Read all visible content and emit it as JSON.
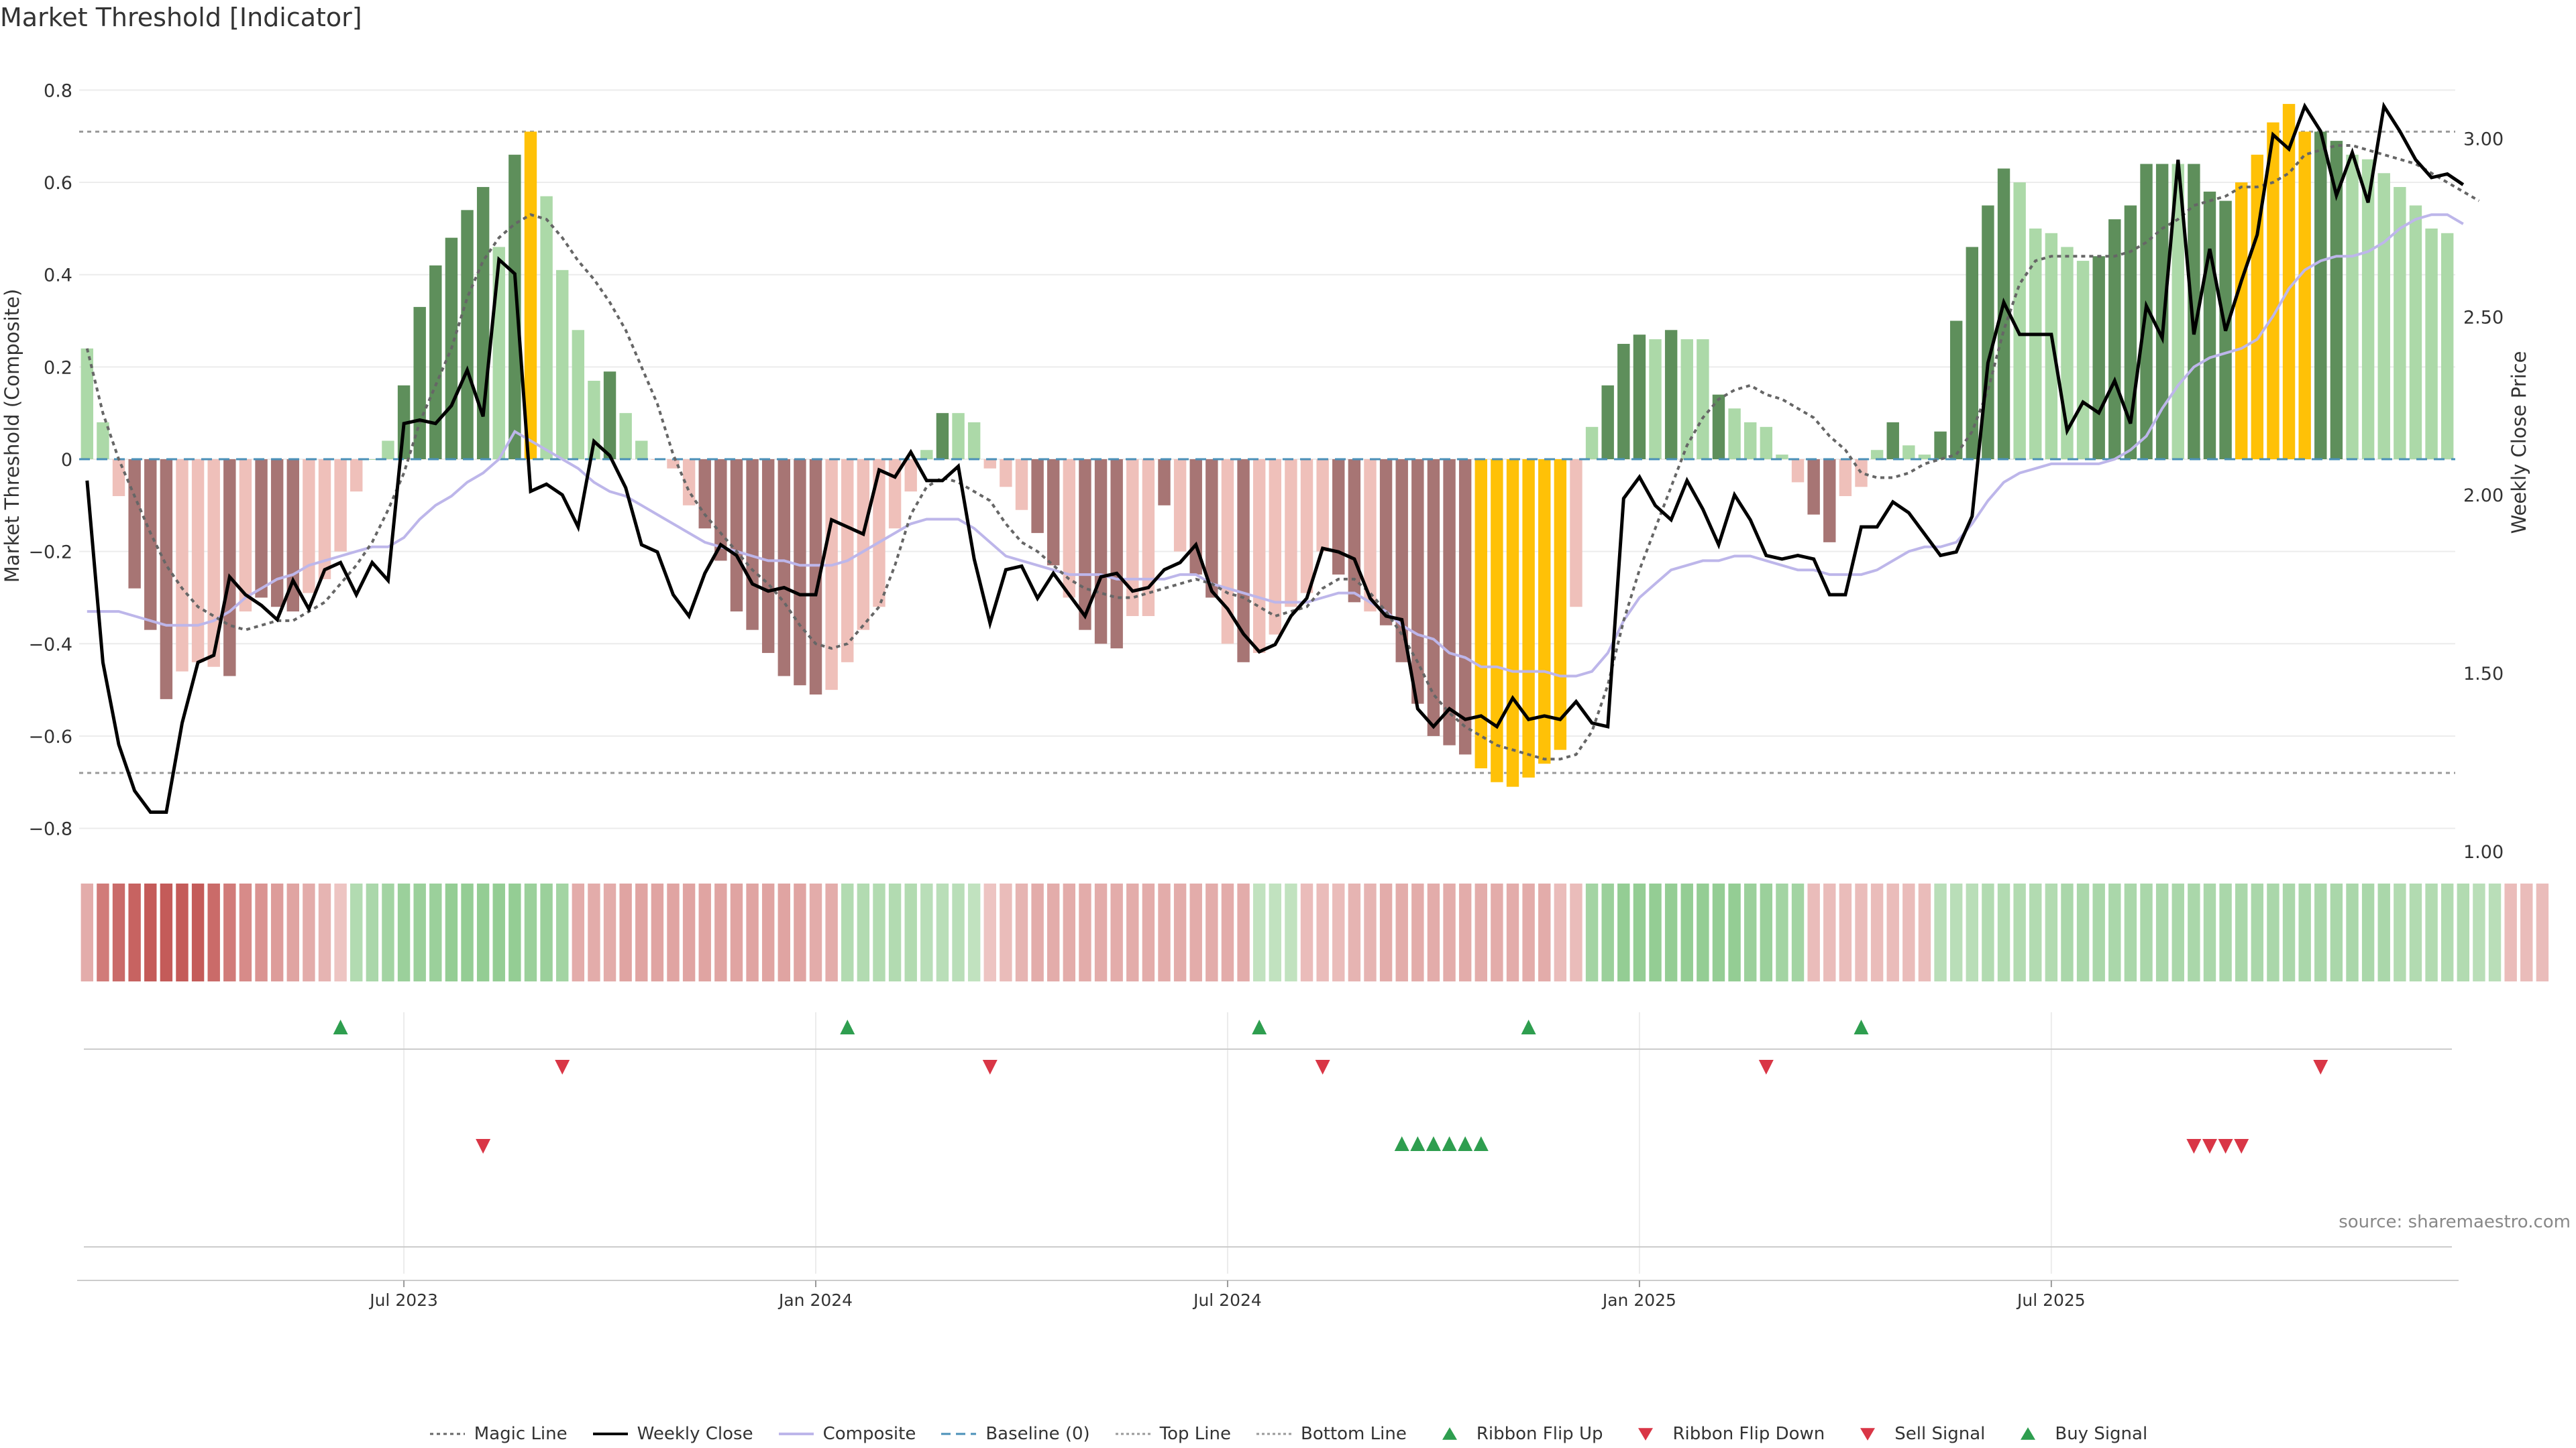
{
  "title": "Market Threshold [Indicator]",
  "source": "source: sharemaestro.com",
  "colors": {
    "strong_pos": "#5e8f5b",
    "weak_pos": "#acd9a8",
    "strong_neg": "#a77574",
    "weak_neg": "#efc0ba",
    "extreme": "#ffc107",
    "weekly": "#000000",
    "composite": "#bdb6ea",
    "magic": "#666666",
    "baseline": "#4a90b8",
    "threshold": "#999999",
    "signal_up": "#2e9e4f",
    "signal_down": "#d93646"
  },
  "legend": [
    {
      "label": "Magic Line",
      "icon": "dotted-line-icon"
    },
    {
      "label": "Weekly Close",
      "icon": "solid-line-icon"
    },
    {
      "label": "Composite",
      "icon": "lilac-line-icon"
    },
    {
      "label": "Baseline (0)",
      "icon": "dashed-line-icon"
    },
    {
      "label": "Top Line",
      "icon": "dotted-gray-line-icon"
    },
    {
      "label": "Bottom Line",
      "icon": "dotted-gray-line-icon"
    },
    {
      "label": "Ribbon Flip Up",
      "icon": "triangle-up-icon"
    },
    {
      "label": "Ribbon Flip Down",
      "icon": "triangle-down-icon"
    },
    {
      "label": "Sell Signal",
      "icon": "triangle-down-icon"
    },
    {
      "label": "Buy Signal",
      "icon": "triangle-up-icon"
    }
  ],
  "chart_data": {
    "type": "bar",
    "title": "Market Threshold [Indicator]",
    "ylabel": "Market Threshold (Composite)",
    "y2label": "Weekly Close Price",
    "ylim": [
      -0.85,
      0.85
    ],
    "y2lim": [
      1.0,
      3.2
    ],
    "yticks": [
      {
        "v": 0.8,
        "label": "0.8"
      },
      {
        "v": 0.6,
        "label": "0.6"
      },
      {
        "v": 0.4,
        "label": "0.4"
      },
      {
        "v": 0.2,
        "label": "0.2"
      },
      {
        "v": 0,
        "label": "0"
      },
      {
        "v": -0.2,
        "label": "−0.2"
      },
      {
        "v": -0.4,
        "label": "−0.4"
      },
      {
        "v": -0.6,
        "label": "−0.6"
      },
      {
        "v": -0.8,
        "label": "−0.8"
      }
    ],
    "y2ticks": [
      {
        "v": 3.0,
        "label": "3.00"
      },
      {
        "v": 2.5,
        "label": "2.50"
      },
      {
        "v": 2.0,
        "label": "2.00"
      },
      {
        "v": 1.5,
        "label": "1.50"
      },
      {
        "v": 1.0,
        "label": "1.00"
      }
    ],
    "xticks": [
      {
        "i": 20,
        "label": "Jul 2023"
      },
      {
        "i": 46,
        "label": "Jan 2024"
      },
      {
        "i": 72,
        "label": "Jul 2024"
      },
      {
        "i": 98,
        "label": "Jan 2025"
      },
      {
        "i": 124,
        "label": "Jul 2025"
      }
    ],
    "top_line": 0.71,
    "bottom_line": -0.68,
    "composite_bars": [
      0.24,
      0.08,
      -0.08,
      -0.28,
      -0.37,
      -0.52,
      -0.46,
      -0.44,
      -0.45,
      -0.47,
      -0.33,
      -0.3,
      -0.32,
      -0.33,
      -0.29,
      -0.26,
      -0.2,
      -0.07,
      0,
      0.04,
      0.16,
      0.33,
      0.42,
      0.48,
      0.54,
      0.59,
      0.46,
      0.66,
      0.71,
      0.57,
      0.41,
      0.28,
      0.17,
      0.19,
      0.1,
      0.04,
      0,
      -0.02,
      -0.1,
      -0.15,
      -0.22,
      -0.33,
      -0.37,
      -0.42,
      -0.47,
      -0.49,
      -0.51,
      -0.5,
      -0.44,
      -0.37,
      -0.32,
      -0.15,
      -0.07,
      0.02,
      0.1,
      0.1,
      0.08,
      -0.02,
      -0.06,
      -0.11,
      -0.16,
      -0.23,
      -0.3,
      -0.37,
      -0.4,
      -0.41,
      -0.34,
      -0.34,
      -0.1,
      -0.2,
      -0.25,
      -0.3,
      -0.4,
      -0.44,
      -0.42,
      -0.38,
      -0.32,
      -0.29,
      -0.2,
      -0.25,
      -0.31,
      -0.33,
      -0.36,
      -0.44,
      -0.53,
      -0.6,
      -0.62,
      -0.64,
      -0.67,
      -0.7,
      -0.71,
      -0.69,
      -0.66,
      -0.63,
      -0.32,
      0.07,
      0.16,
      0.25,
      0.27,
      0.26,
      0.28,
      0.26,
      0.26,
      0.14,
      0.11,
      0.08,
      0.07,
      0.01,
      -0.05,
      -0.12,
      -0.18,
      -0.08,
      -0.06,
      0.02,
      0.08,
      0.03,
      0.01,
      0.06,
      0.3,
      0.46,
      0.55,
      0.63,
      0.6,
      0.5,
      0.49,
      0.46,
      0.43,
      0.44,
      0.52,
      0.55,
      0.64,
      0.64,
      0.64,
      0.64,
      0.58,
      0.56,
      0.6,
      0.66,
      0.73,
      0.77,
      0.71,
      0.71,
      0.69,
      0.66,
      0.65,
      0.62,
      0.59,
      0.55,
      0.5,
      0.49
    ],
    "bar_class": [
      "wp",
      "wp",
      "wn",
      "sn",
      "sn",
      "sn",
      "wn",
      "wn",
      "wn",
      "sn",
      "wn",
      "sn",
      "sn",
      "sn",
      "wn",
      "wn",
      "wn",
      "wn",
      "wp",
      "wp",
      "sp",
      "sp",
      "sp",
      "sp",
      "sp",
      "sp",
      "wp",
      "sp",
      "ex",
      "wp",
      "wp",
      "wp",
      "wp",
      "sp",
      "wp",
      "wp",
      "wn",
      "wn",
      "wn",
      "sn",
      "sn",
      "sn",
      "sn",
      "sn",
      "sn",
      "sn",
      "sn",
      "wn",
      "wn",
      "wn",
      "wn",
      "wn",
      "wn",
      "wp",
      "sp",
      "wp",
      "wp",
      "wn",
      "wn",
      "wn",
      "sn",
      "sn",
      "wn",
      "sn",
      "sn",
      "sn",
      "wn",
      "wn",
      "sn",
      "wn",
      "sn",
      "sn",
      "wn",
      "sn",
      "wn",
      "wn",
      "wn",
      "wn",
      "wn",
      "sn",
      "sn",
      "wn",
      "sn",
      "sn",
      "sn",
      "sn",
      "sn",
      "sn",
      "ex",
      "ex",
      "ex",
      "ex",
      "ex",
      "ex",
      "wn",
      "wp",
      "sp",
      "sp",
      "sp",
      "wp",
      "sp",
      "wp",
      "wp",
      "sp",
      "wp",
      "wp",
      "wp",
      "wp",
      "wn",
      "sn",
      "sn",
      "wn",
      "wn",
      "wp",
      "sp",
      "wp",
      "wp",
      "sp",
      "sp",
      "sp",
      "sp",
      "sp",
      "wp",
      "wp",
      "wp",
      "wp",
      "wp",
      "sp",
      "sp",
      "sp",
      "sp",
      "sp",
      "wp",
      "sp",
      "sp",
      "sp",
      "ex",
      "ex",
      "ex",
      "ex",
      "ex",
      "sp",
      "sp",
      "wp",
      "wp",
      "wp",
      "wp",
      "wp"
    ],
    "weekly_close": [
      2.04,
      1.53,
      1.3,
      1.17,
      1.11,
      1.11,
      1.36,
      1.53,
      1.55,
      1.77,
      1.72,
      1.69,
      1.65,
      1.76,
      1.68,
      1.79,
      1.81,
      1.72,
      1.81,
      1.76,
      2.2,
      2.21,
      2.2,
      2.25,
      2.35,
      2.22,
      2.66,
      2.62,
      2.01,
      2.03,
      2.0,
      1.91,
      2.15,
      2.11,
      2.02,
      1.86,
      1.84,
      1.72,
      1.66,
      1.78,
      1.86,
      1.83,
      1.75,
      1.73,
      1.74,
      1.72,
      1.72,
      1.93,
      1.91,
      1.89,
      2.07,
      2.05,
      2.12,
      2.04,
      2.04,
      2.08,
      1.82,
      1.64,
      1.79,
      1.8,
      1.71,
      1.78,
      1.72,
      1.66,
      1.77,
      1.78,
      1.73,
      1.74,
      1.79,
      1.81,
      1.86,
      1.73,
      1.68,
      1.61,
      1.56,
      1.58,
      1.66,
      1.71,
      1.85,
      1.84,
      1.82,
      1.71,
      1.66,
      1.65,
      1.4,
      1.35,
      1.4,
      1.37,
      1.38,
      1.35,
      1.43,
      1.37,
      1.38,
      1.37,
      1.42,
      1.36,
      1.35,
      1.99,
      2.05,
      1.97,
      1.93,
      2.04,
      1.96,
      1.86,
      2.0,
      1.93,
      1.83,
      1.82,
      1.83,
      1.82,
      1.72,
      1.72,
      1.91,
      1.91,
      1.98,
      1.95,
      1.89,
      1.83,
      1.84,
      1.94,
      2.37,
      2.54,
      2.45,
      2.45,
      2.45,
      2.18,
      2.26,
      2.23,
      2.32,
      2.2,
      2.53,
      2.44,
      2.94,
      2.45,
      2.69,
      2.46,
      2.6,
      2.73,
      3.01,
      2.97,
      3.09,
      3.02,
      2.84,
      2.96,
      2.82,
      3.09,
      3.02,
      2.94,
      2.89,
      2.9,
      2.87
    ],
    "composite_line": [
      -0.33,
      -0.33,
      -0.33,
      -0.34,
      -0.35,
      -0.36,
      -0.36,
      -0.36,
      -0.35,
      -0.33,
      -0.3,
      -0.28,
      -0.26,
      -0.25,
      -0.23,
      -0.22,
      -0.21,
      -0.2,
      -0.19,
      -0.19,
      -0.17,
      -0.13,
      -0.1,
      -0.08,
      -0.05,
      -0.03,
      0.0,
      0.06,
      0.04,
      0.02,
      0.0,
      -0.02,
      -0.05,
      -0.07,
      -0.08,
      -0.1,
      -0.12,
      -0.14,
      -0.16,
      -0.18,
      -0.19,
      -0.2,
      -0.21,
      -0.22,
      -0.22,
      -0.23,
      -0.23,
      -0.23,
      -0.22,
      -0.2,
      -0.18,
      -0.16,
      -0.14,
      -0.13,
      -0.13,
      -0.13,
      -0.15,
      -0.18,
      -0.21,
      -0.22,
      -0.23,
      -0.24,
      -0.25,
      -0.25,
      -0.25,
      -0.26,
      -0.26,
      -0.26,
      -0.26,
      -0.25,
      -0.25,
      -0.27,
      -0.28,
      -0.29,
      -0.3,
      -0.31,
      -0.31,
      -0.31,
      -0.3,
      -0.29,
      -0.29,
      -0.31,
      -0.33,
      -0.36,
      -0.38,
      -0.39,
      -0.42,
      -0.43,
      -0.45,
      -0.45,
      -0.46,
      -0.46,
      -0.46,
      -0.47,
      -0.47,
      -0.46,
      -0.42,
      -0.35,
      -0.3,
      -0.27,
      -0.24,
      -0.23,
      -0.22,
      -0.22,
      -0.21,
      -0.21,
      -0.22,
      -0.23,
      -0.24,
      -0.24,
      -0.25,
      -0.25,
      -0.25,
      -0.24,
      -0.22,
      -0.2,
      -0.19,
      -0.19,
      -0.18,
      -0.14,
      -0.09,
      -0.05,
      -0.03,
      -0.02,
      -0.01,
      -0.01,
      -0.01,
      -0.01,
      0.0,
      0.02,
      0.05,
      0.11,
      0.16,
      0.2,
      0.22,
      0.23,
      0.24,
      0.26,
      0.31,
      0.37,
      0.41,
      0.43,
      0.44,
      0.44,
      0.45,
      0.47,
      0.5,
      0.52,
      0.53,
      0.53,
      0.51
    ],
    "magic_line": [
      0.24,
      0.1,
      0.0,
      -0.08,
      -0.16,
      -0.23,
      -0.28,
      -0.32,
      -0.34,
      -0.36,
      -0.37,
      -0.36,
      -0.35,
      -0.35,
      -0.33,
      -0.31,
      -0.27,
      -0.23,
      -0.18,
      -0.11,
      -0.03,
      0.08,
      0.16,
      0.24,
      0.35,
      0.43,
      0.48,
      0.51,
      0.53,
      0.52,
      0.48,
      0.43,
      0.39,
      0.34,
      0.28,
      0.2,
      0.12,
      0.01,
      -0.07,
      -0.12,
      -0.16,
      -0.2,
      -0.24,
      -0.27,
      -0.31,
      -0.36,
      -0.4,
      -0.41,
      -0.4,
      -0.36,
      -0.32,
      -0.23,
      -0.12,
      -0.06,
      -0.04,
      -0.05,
      -0.07,
      -0.09,
      -0.14,
      -0.18,
      -0.2,
      -0.23,
      -0.26,
      -0.28,
      -0.29,
      -0.3,
      -0.3,
      -0.29,
      -0.28,
      -0.27,
      -0.26,
      -0.27,
      -0.29,
      -0.3,
      -0.32,
      -0.34,
      -0.33,
      -0.32,
      -0.28,
      -0.26,
      -0.26,
      -0.29,
      -0.33,
      -0.38,
      -0.44,
      -0.51,
      -0.55,
      -0.58,
      -0.6,
      -0.62,
      -0.63,
      -0.64,
      -0.65,
      -0.65,
      -0.64,
      -0.59,
      -0.49,
      -0.35,
      -0.24,
      -0.15,
      -0.06,
      0.03,
      0.09,
      0.13,
      0.15,
      0.16,
      0.14,
      0.13,
      0.11,
      0.09,
      0.05,
      0.02,
      -0.03,
      -0.04,
      -0.04,
      -0.03,
      -0.01,
      0.0,
      0.01,
      0.06,
      0.15,
      0.28,
      0.38,
      0.43,
      0.44,
      0.44,
      0.44,
      0.44,
      0.44,
      0.45,
      0.47,
      0.5,
      0.52,
      0.55,
      0.56,
      0.57,
      0.59,
      0.59,
      0.6,
      0.62,
      0.66,
      0.67,
      0.68,
      0.68,
      0.67,
      0.66,
      0.65,
      0.64,
      0.62,
      0.6,
      0.58,
      0.56
    ],
    "ribbon": [
      -0.3,
      -0.6,
      -0.7,
      -0.75,
      -0.8,
      -0.8,
      -0.8,
      -0.8,
      -0.7,
      -0.6,
      -0.5,
      -0.45,
      -0.4,
      -0.35,
      -0.3,
      -0.25,
      -0.15,
      0.3,
      0.35,
      0.4,
      0.45,
      0.45,
      0.45,
      0.5,
      0.5,
      0.5,
      0.5,
      0.5,
      0.45,
      0.45,
      0.4,
      -0.3,
      -0.3,
      -0.3,
      -0.35,
      -0.35,
      -0.35,
      -0.35,
      -0.35,
      -0.35,
      -0.35,
      -0.35,
      -0.35,
      -0.35,
      -0.35,
      -0.35,
      -0.3,
      -0.3,
      0.3,
      0.3,
      0.3,
      0.3,
      0.3,
      0.25,
      0.25,
      0.25,
      0.2,
      -0.15,
      -0.2,
      -0.25,
      -0.3,
      -0.3,
      -0.3,
      -0.3,
      -0.3,
      -0.3,
      -0.3,
      -0.3,
      -0.3,
      -0.3,
      -0.3,
      -0.3,
      -0.3,
      -0.3,
      0.2,
      0.2,
      0.2,
      -0.2,
      -0.2,
      -0.2,
      -0.25,
      -0.25,
      -0.3,
      -0.3,
      -0.3,
      -0.3,
      -0.3,
      -0.3,
      -0.3,
      -0.3,
      -0.3,
      -0.3,
      -0.3,
      -0.2,
      -0.2,
      0.4,
      0.45,
      0.5,
      0.5,
      0.5,
      0.5,
      0.5,
      0.5,
      0.5,
      0.5,
      0.45,
      0.45,
      0.4,
      0.4,
      -0.2,
      -0.2,
      -0.2,
      -0.2,
      -0.2,
      -0.2,
      -0.2,
      -0.2,
      0.25,
      0.25,
      0.25,
      0.3,
      0.3,
      0.3,
      0.3,
      0.3,
      0.35,
      0.35,
      0.35,
      0.35,
      0.35,
      0.35,
      0.35,
      0.35,
      0.35,
      0.35,
      0.35,
      0.35,
      0.35,
      0.35,
      0.35,
      0.35,
      0.35,
      0.35,
      0.35,
      0.35,
      0.35,
      0.3,
      0.3,
      0.3,
      0.3,
      0.3,
      0.25,
      0.25,
      -0.2,
      -0.2,
      -0.2
    ],
    "ribbon_flip_up": [
      16,
      48,
      74,
      91,
      112
    ],
    "ribbon_flip_down": [
      30,
      57,
      78,
      106,
      141
    ],
    "sell_signals": [
      25,
      133,
      134,
      135,
      136
    ],
    "buy_signals": [
      83,
      84,
      85,
      86,
      87,
      88
    ]
  }
}
